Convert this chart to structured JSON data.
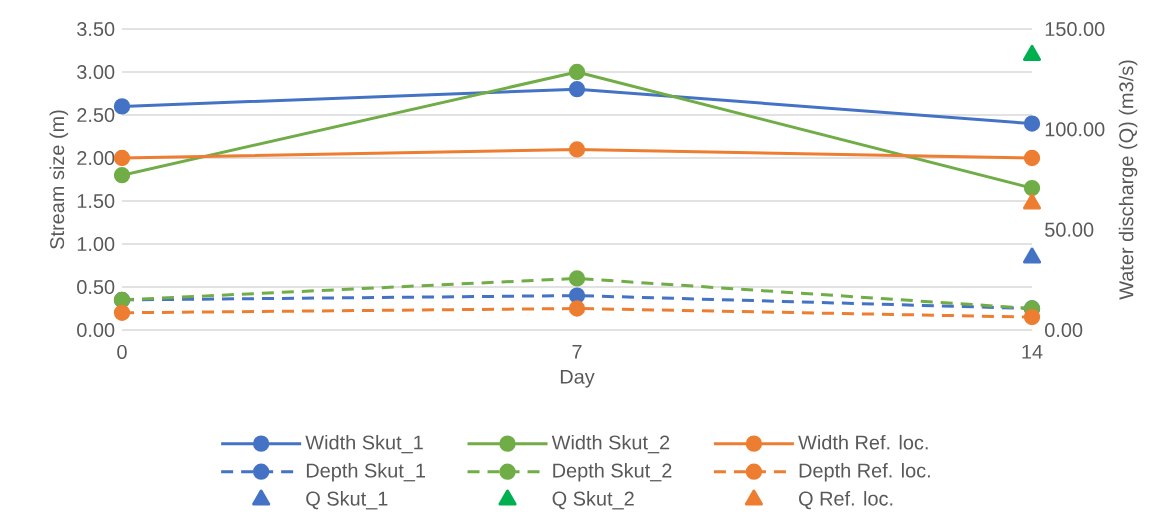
{
  "chart_data": {
    "type": "line",
    "xlabel": "Day",
    "ylabel": "Stream size (m)",
    "y2label": "Water discharge (Q) (m3/s)",
    "x": [
      0,
      7,
      14
    ],
    "xlim": [
      0,
      14
    ],
    "xticks": [
      0,
      7,
      14
    ],
    "ylim": [
      0,
      3.5
    ],
    "yticks": [
      {
        "value": 0,
        "label": "0.00"
      },
      {
        "value": 0.5,
        "label": "0.50"
      },
      {
        "value": 1,
        "label": "1.00"
      },
      {
        "value": 1.5,
        "label": "1.50"
      },
      {
        "value": 2,
        "label": "2.00"
      },
      {
        "value": 2.5,
        "label": "2.50"
      },
      {
        "value": 3,
        "label": "3.00"
      },
      {
        "value": 3.5,
        "label": "3.50"
      }
    ],
    "y2lim": [
      0,
      150
    ],
    "y2ticks": [
      {
        "value": 0,
        "label": "0.00"
      },
      {
        "value": 50,
        "label": "50.00"
      },
      {
        "value": 100,
        "label": "100.00"
      },
      {
        "value": 150,
        "label": "150.00"
      }
    ],
    "grid": "y",
    "legend": "bottom",
    "series": [
      {
        "name": "Width Skut_1",
        "color": "#4472c4",
        "values": [
          2.6,
          2.8,
          2.4
        ],
        "marker": "circle",
        "line_style": "solid"
      },
      {
        "name": "Width Skut_2",
        "color": "#70ad47",
        "values": [
          1.8,
          3.0,
          1.65
        ],
        "marker": "circle",
        "line_style": "solid"
      },
      {
        "name": "Width Ref. loc.",
        "color": "#ed7d31",
        "values": [
          2.0,
          2.1,
          2.0
        ],
        "marker": "circle",
        "line_style": "solid"
      },
      {
        "name": "Depth Skut_1",
        "color": "#4472c4",
        "values": [
          0.35,
          0.4,
          0.25
        ],
        "marker": "circle",
        "line_style": "dashed"
      },
      {
        "name": "Depth Skut_2",
        "color": "#70ad47",
        "values": [
          0.35,
          0.6,
          0.25
        ],
        "marker": "circle",
        "line_style": "dashed"
      },
      {
        "name": "Depth Ref. loc.",
        "color": "#ed7d31",
        "values": [
          0.2,
          0.25,
          0.15
        ],
        "marker": "circle",
        "line_style": "dashed"
      },
      {
        "name": "Q Skut_1",
        "type": "scatter",
        "axis": "y2",
        "color": "#4472c4",
        "values": [
          null,
          null,
          36
        ],
        "marker": "triangle"
      },
      {
        "name": "Q Skut_2",
        "type": "scatter",
        "axis": "y2",
        "color": "#00b050",
        "values": [
          null,
          null,
          137
        ],
        "marker": "triangle"
      },
      {
        "name": "Q Ref. loc.",
        "type": "scatter",
        "axis": "y2",
        "color": "#ed7d31",
        "values": [
          null,
          null,
          63
        ],
        "marker": "triangle"
      }
    ]
  }
}
